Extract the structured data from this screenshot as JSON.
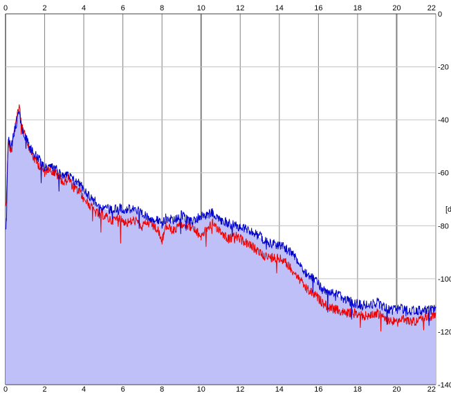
{
  "chart_data": {
    "type": "line",
    "title": "",
    "xlabel": "",
    "ylabel": "[d",
    "xlim": [
      0,
      22
    ],
    "ylim": [
      -140,
      0
    ],
    "x_ticks": [
      0,
      2,
      4,
      6,
      8,
      10,
      12,
      14,
      16,
      18,
      20,
      22
    ],
    "x_tick_labels": [
      "0",
      "2",
      "4",
      "6",
      "8",
      "10",
      "12",
      "14",
      "16",
      "18",
      "20",
      "22"
    ],
    "y_ticks": [
      0,
      -20,
      -40,
      -60,
      -80,
      -100,
      -120,
      -140
    ],
    "y_tick_labels": [
      "0",
      "-20",
      "-40",
      "-60",
      "-80",
      "-100",
      "-120",
      "-140"
    ],
    "grid": true,
    "colors": {
      "fill": "#c0c0f8",
      "series_red": "#ee0000",
      "series_blue": "#0000cc",
      "grid_major": "#808080",
      "grid_minor": "#c0c0c0"
    },
    "series": [
      {
        "color": "#ee0000",
        "x": [
          0,
          0.05,
          0.1,
          0.15,
          0.2,
          0.3,
          0.4,
          0.5,
          0.6,
          0.7,
          0.8,
          0.9,
          1.0,
          1.2,
          1.4,
          1.6,
          1.8,
          2.0,
          2.2,
          2.5,
          2.8,
          3.0,
          3.2,
          3.5,
          3.8,
          4.0,
          4.3,
          4.6,
          5.0,
          5.4,
          5.8,
          6.2,
          6.6,
          7.0,
          7.4,
          7.8,
          8.0,
          8.2,
          8.6,
          9.0,
          9.4,
          9.7,
          10.0,
          10.3,
          10.6,
          11.0,
          11.4,
          11.8,
          12.2,
          12.6,
          13.0,
          13.4,
          13.8,
          14.2,
          14.6,
          15.0,
          15.4,
          15.8,
          16.2,
          16.6,
          17.0,
          17.4,
          17.8,
          18.2,
          18.6,
          19.0,
          19.4,
          19.8,
          20.2,
          20.6,
          21.0,
          21.4,
          21.8,
          22.0
        ],
        "y": [
          -72,
          -70,
          -55,
          -48,
          -50,
          -52,
          -45,
          -42,
          -38,
          -34,
          -40,
          -44,
          -46,
          -50,
          -54,
          -56,
          -58,
          -60,
          -58,
          -60,
          -62,
          -64,
          -62,
          -66,
          -67,
          -70,
          -72,
          -75,
          -76,
          -78,
          -77,
          -79,
          -78,
          -80,
          -79,
          -82,
          -86,
          -80,
          -82,
          -79,
          -80,
          -82,
          -84,
          -81,
          -79,
          -82,
          -85,
          -84,
          -86,
          -88,
          -90,
          -92,
          -92,
          -93,
          -96,
          -100,
          -104,
          -106,
          -109,
          -111,
          -112,
          -113,
          -113,
          -114,
          -114,
          -113,
          -115,
          -116,
          -115,
          -116,
          -116,
          -115,
          -114,
          -113
        ]
      },
      {
        "color": "#0000cc",
        "x": [
          0,
          0.05,
          0.1,
          0.15,
          0.2,
          0.3,
          0.4,
          0.5,
          0.6,
          0.7,
          0.8,
          0.9,
          1.0,
          1.2,
          1.4,
          1.6,
          1.8,
          2.0,
          2.2,
          2.5,
          2.8,
          3.0,
          3.2,
          3.5,
          3.8,
          4.0,
          4.3,
          4.6,
          5.0,
          5.4,
          5.8,
          6.2,
          6.6,
          7.0,
          7.4,
          7.8,
          8.0,
          8.2,
          8.6,
          9.0,
          9.4,
          9.7,
          10.0,
          10.3,
          10.6,
          11.0,
          11.4,
          11.8,
          12.2,
          12.6,
          13.0,
          13.4,
          13.8,
          14.2,
          14.6,
          15.0,
          15.4,
          15.8,
          16.2,
          16.6,
          17.0,
          17.4,
          17.8,
          18.2,
          18.6,
          19.0,
          19.4,
          19.8,
          20.2,
          20.6,
          21.0,
          21.4,
          21.8,
          22.0
        ],
        "y": [
          -82,
          -78,
          -56,
          -47,
          -49,
          -50,
          -46,
          -43,
          -40,
          -36,
          -42,
          -45,
          -46,
          -50,
          -52,
          -54,
          -56,
          -58,
          -58,
          -58,
          -60,
          -61,
          -61,
          -63,
          -64,
          -66,
          -69,
          -71,
          -73,
          -74,
          -73,
          -74,
          -73,
          -76,
          -77,
          -78,
          -80,
          -77,
          -78,
          -76,
          -78,
          -78,
          -76,
          -76,
          -75,
          -78,
          -79,
          -80,
          -81,
          -82,
          -84,
          -86,
          -87,
          -88,
          -90,
          -94,
          -98,
          -100,
          -104,
          -105,
          -106,
          -108,
          -109,
          -110,
          -110,
          -109,
          -111,
          -112,
          -111,
          -112,
          -112,
          -112,
          -111,
          -111
        ]
      }
    ]
  }
}
